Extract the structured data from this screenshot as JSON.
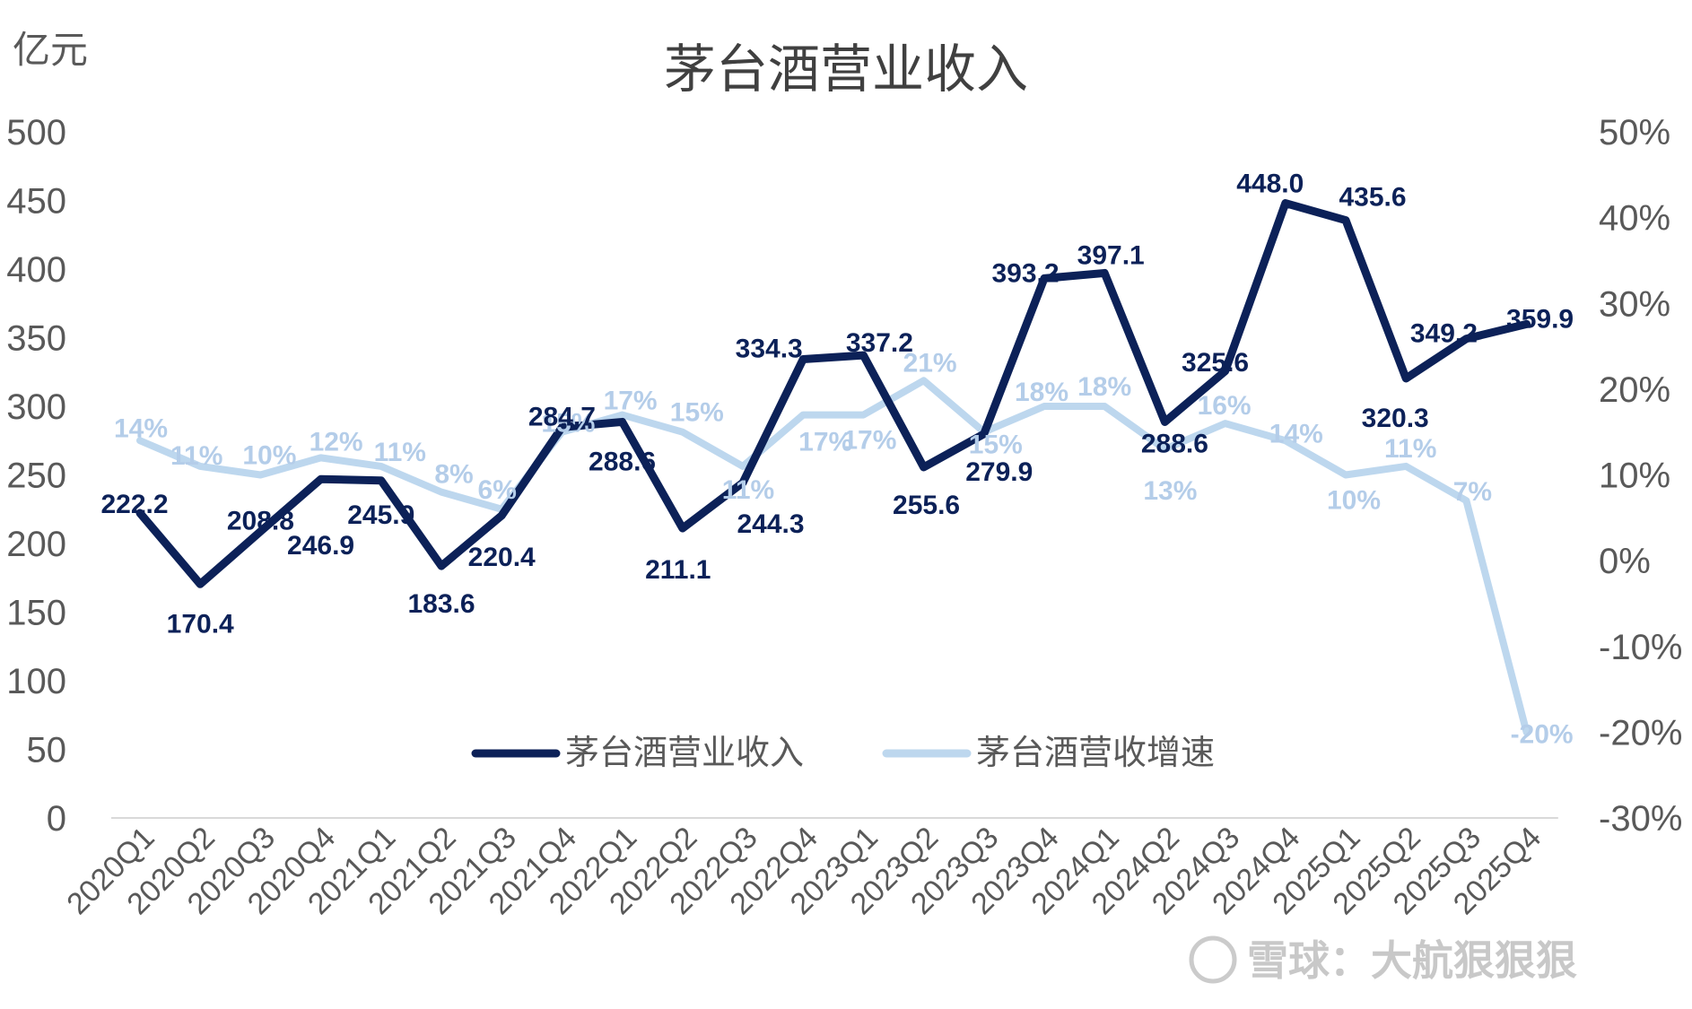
{
  "chart_data": {
    "type": "line",
    "title": "茅台酒营业收入",
    "ylabel": "亿元",
    "ylim": [
      0,
      500
    ],
    "y_ticks": [
      0,
      50,
      100,
      150,
      200,
      250,
      300,
      350,
      400,
      450,
      500
    ],
    "y2lim": [
      -30,
      50
    ],
    "y2_ticks": [
      "-30%",
      "-20%",
      "-10%",
      "0%",
      "10%",
      "20%",
      "30%",
      "40%",
      "50%"
    ],
    "y2_tick_values": [
      -30,
      -20,
      -10,
      0,
      10,
      20,
      30,
      40,
      50
    ],
    "categories": [
      "2020Q1",
      "2020Q2",
      "2020Q3",
      "2020Q4",
      "2021Q1",
      "2021Q2",
      "2021Q3",
      "2021Q4",
      "2022Q1",
      "2022Q2",
      "2022Q3",
      "2022Q4",
      "2023Q1",
      "2023Q2",
      "2023Q3",
      "2023Q4",
      "2024Q1",
      "2024Q2",
      "2024Q3",
      "2024Q4",
      "2025Q1",
      "2025Q2",
      "2025Q3",
      "2025Q4"
    ],
    "series": [
      {
        "name": "茅台酒营业收入",
        "axis": "left",
        "color": "#0c2158",
        "values": [
          222.2,
          170.4,
          208.8,
          246.9,
          245.9,
          183.6,
          220.4,
          284.7,
          288.6,
          211.1,
          244.3,
          334.3,
          337.2,
          255.6,
          279.9,
          393.2,
          397.1,
          288.6,
          325.6,
          448.0,
          435.6,
          320.3,
          349.2,
          359.9
        ],
        "labels": [
          "222.2",
          "170.4",
          "208.8",
          "246.9",
          "245.9",
          "183.6",
          "220.4",
          "284.7",
          "288.6",
          "211.1",
          "244.3",
          "334.3",
          "337.2",
          "255.6",
          "279.9",
          "393.2",
          "397.1",
          "288.6",
          "325.6",
          "448.0",
          "435.6",
          "320.3",
          "349.2",
          "359.9"
        ]
      },
      {
        "name": "茅台酒营收增速",
        "axis": "right",
        "color": "#bdd7ee",
        "values": [
          14,
          11,
          10,
          12,
          11,
          8,
          6,
          15,
          17,
          15,
          11,
          17,
          17,
          21,
          15,
          18,
          18,
          13,
          16,
          14,
          10,
          11,
          7,
          -20
        ],
        "labels": [
          "14%",
          "11%",
          "10%",
          "12%",
          "11%",
          "8%",
          "6%",
          "15%",
          "17%",
          "15%",
          "11%",
          "17%",
          "17%",
          "21%",
          "15%",
          "18%",
          "18%",
          "13%",
          "16%",
          "14%",
          "10%",
          "11%",
          "7%",
          "-20%"
        ]
      }
    ],
    "legend_position": "bottom-center",
    "grid": false
  },
  "watermark": {
    "text": "雪球：大航狠狠狠"
  }
}
